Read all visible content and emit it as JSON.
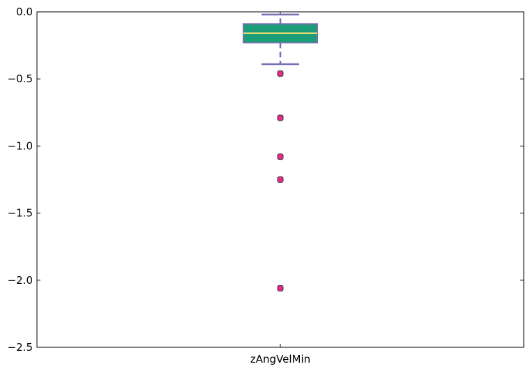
{
  "chart_data": {
    "type": "box",
    "title": "",
    "xlabel": "",
    "ylabel": "",
    "categories": [
      "zAngVelMin"
    ],
    "ylim": [
      -2.5,
      0.0
    ],
    "yticks": [
      0.0,
      -0.5,
      -1.0,
      -1.5,
      -2.0,
      -2.5
    ],
    "ytick_labels": [
      "0.0",
      "−0.5",
      "−1.0",
      "−1.5",
      "−2.0",
      "−2.5"
    ],
    "grid": false,
    "legend": "none",
    "boxes": [
      {
        "category": "zAngVelMin",
        "whisker_high": -0.02,
        "q3": -0.09,
        "median": -0.16,
        "q1": -0.23,
        "whisker_low": -0.39,
        "outliers": [
          -0.46,
          -0.79,
          -1.08,
          -1.25,
          -2.06
        ]
      }
    ],
    "colors": {
      "box_fill": "#1b9e77",
      "box_edge": "#7570b3",
      "whisker": "#7570b3",
      "median": "#e6db74",
      "outlier_fill": "#e7298a",
      "outlier_edge": "#333333"
    }
  }
}
